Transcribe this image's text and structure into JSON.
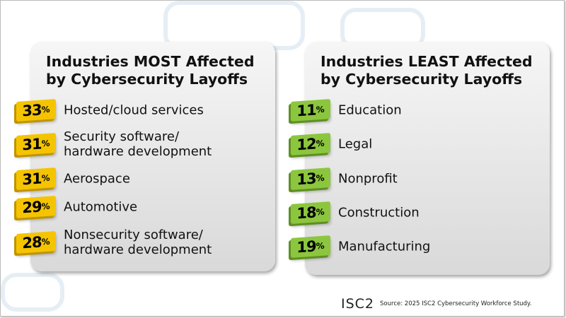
{
  "chart_data": [
    {
      "type": "table",
      "title": "Industries MOST Affected by Cybersecurity Layoffs",
      "color": "#f5c400",
      "categories": [
        "Hosted/cloud services",
        "Security software/\nhardware development",
        "Aerospace",
        "Automotive",
        "Nonsecurity software/\nhardware development"
      ],
      "values": [
        33,
        31,
        31,
        29,
        28
      ],
      "unit": "%"
    },
    {
      "type": "table",
      "title": "Industries LEAST Affected by Cybersecurity Layoffs",
      "color": "#8cc63e",
      "categories": [
        "Education",
        "Legal",
        "Nonprofit",
        "Construction",
        "Manufacturing"
      ],
      "values": [
        11,
        12,
        13,
        18,
        19
      ],
      "unit": "%"
    }
  ],
  "footer": {
    "logo": "ISC2",
    "source": "Source: 2025 ISC2 Cybersecurity Workforce Study."
  }
}
